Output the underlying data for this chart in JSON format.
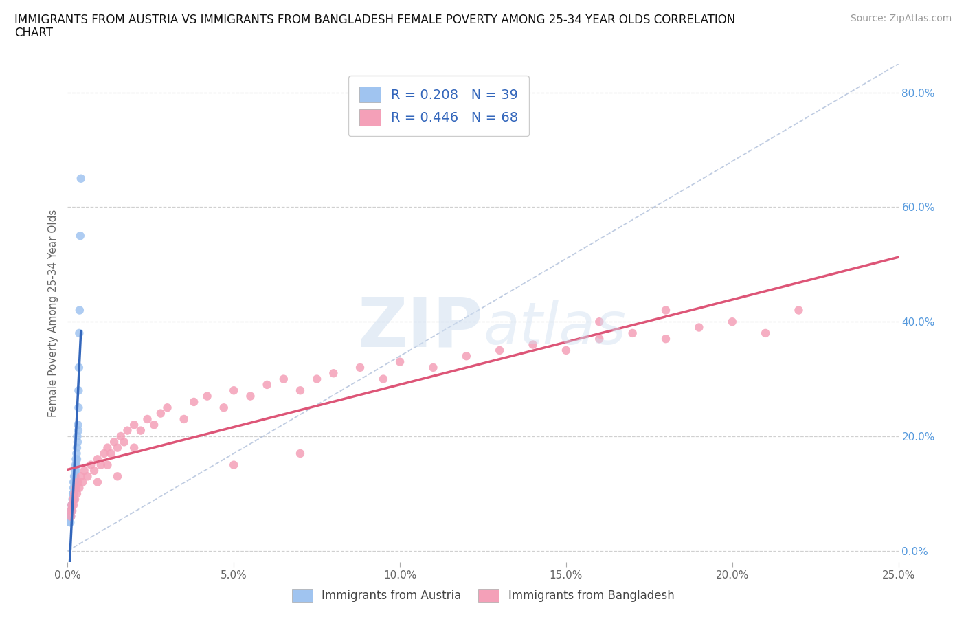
{
  "title_line1": "IMMIGRANTS FROM AUSTRIA VS IMMIGRANTS FROM BANGLADESH FEMALE POVERTY AMONG 25-34 YEAR OLDS CORRELATION",
  "title_line2": "CHART",
  "source": "Source: ZipAtlas.com",
  "ylabel": "Female Poverty Among 25-34 Year Olds",
  "xlim": [
    0.0,
    0.25
  ],
  "ylim": [
    -0.02,
    0.85
  ],
  "xticks": [
    0.0,
    0.05,
    0.1,
    0.15,
    0.2,
    0.25
  ],
  "xticklabels": [
    "0.0%",
    "5.0%",
    "10.0%",
    "15.0%",
    "20.0%",
    "25.0%"
  ],
  "yticks_right": [
    0.0,
    0.2,
    0.4,
    0.6,
    0.8
  ],
  "yticklabels_right": [
    "0.0%",
    "20.0%",
    "40.0%",
    "60.0%",
    "80.0%"
  ],
  "austria_color": "#a0c4f0",
  "bangladesh_color": "#f4a0b8",
  "austria_line_color": "#3366bb",
  "bangladesh_line_color": "#dd5577",
  "diag_line_color": "#aabbd8",
  "R_austria": 0.208,
  "N_austria": 39,
  "R_bangladesh": 0.446,
  "N_bangladesh": 68,
  "watermark_zip": "ZIP",
  "watermark_atlas": "atlas",
  "background_color": "#ffffff",
  "grid_color": "#d0d0d0",
  "austria_x": [
    0.0005,
    0.0007,
    0.0008,
    0.0009,
    0.001,
    0.001,
    0.0012,
    0.0013,
    0.0014,
    0.0015,
    0.0016,
    0.0017,
    0.0018,
    0.0018,
    0.0019,
    0.002,
    0.002,
    0.0021,
    0.0022,
    0.0022,
    0.0023,
    0.0024,
    0.0025,
    0.0025,
    0.0026,
    0.0027,
    0.0028,
    0.0028,
    0.0029,
    0.003,
    0.0031,
    0.0032,
    0.0033,
    0.0033,
    0.0034,
    0.0035,
    0.0036,
    0.0038,
    0.004
  ],
  "austria_y": [
    0.06,
    0.05,
    0.05,
    0.06,
    0.07,
    0.06,
    0.08,
    0.07,
    0.08,
    0.09,
    0.1,
    0.1,
    0.11,
    0.12,
    0.09,
    0.12,
    0.13,
    0.11,
    0.12,
    0.14,
    0.13,
    0.15,
    0.14,
    0.16,
    0.15,
    0.17,
    0.18,
    0.16,
    0.2,
    0.19,
    0.22,
    0.21,
    0.25,
    0.28,
    0.32,
    0.38,
    0.42,
    0.55,
    0.65
  ],
  "bangladesh_x": [
    0.0008,
    0.001,
    0.0012,
    0.0014,
    0.0016,
    0.0018,
    0.002,
    0.0022,
    0.0025,
    0.0028,
    0.003,
    0.0035,
    0.004,
    0.0045,
    0.005,
    0.006,
    0.007,
    0.008,
    0.009,
    0.01,
    0.011,
    0.012,
    0.013,
    0.014,
    0.015,
    0.016,
    0.017,
    0.018,
    0.02,
    0.022,
    0.024,
    0.026,
    0.028,
    0.03,
    0.035,
    0.038,
    0.042,
    0.047,
    0.05,
    0.055,
    0.06,
    0.065,
    0.07,
    0.075,
    0.08,
    0.088,
    0.095,
    0.1,
    0.11,
    0.12,
    0.13,
    0.14,
    0.15,
    0.16,
    0.17,
    0.18,
    0.19,
    0.2,
    0.21,
    0.22,
    0.16,
    0.18,
    0.07,
    0.05,
    0.02,
    0.015,
    0.012,
    0.009
  ],
  "bangladesh_y": [
    0.07,
    0.06,
    0.08,
    0.07,
    0.09,
    0.08,
    0.1,
    0.09,
    0.11,
    0.1,
    0.12,
    0.11,
    0.13,
    0.12,
    0.14,
    0.13,
    0.15,
    0.14,
    0.16,
    0.15,
    0.17,
    0.18,
    0.17,
    0.19,
    0.18,
    0.2,
    0.19,
    0.21,
    0.22,
    0.21,
    0.23,
    0.22,
    0.24,
    0.25,
    0.23,
    0.26,
    0.27,
    0.25,
    0.28,
    0.27,
    0.29,
    0.3,
    0.28,
    0.3,
    0.31,
    0.32,
    0.3,
    0.33,
    0.32,
    0.34,
    0.35,
    0.36,
    0.35,
    0.37,
    0.38,
    0.37,
    0.39,
    0.4,
    0.38,
    0.42,
    0.4,
    0.42,
    0.17,
    0.15,
    0.18,
    0.13,
    0.15,
    0.12
  ]
}
